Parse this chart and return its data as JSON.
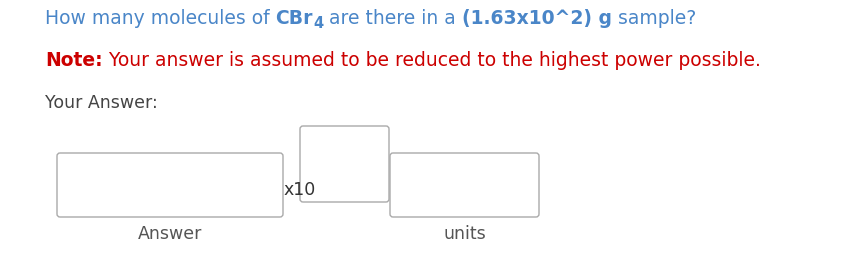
{
  "blue": "#4a86c8",
  "red": "#cc0000",
  "gray_text": "#555555",
  "dark_text": "#444444",
  "box_edge": "#aaaaaa",
  "background": "#ffffff",
  "q_prefix": "How many molecules of ",
  "q_chem": "CBr",
  "q_sub": "4",
  "q_middle": " are there in a ",
  "q_bold": "(1.63x10^2) g",
  "q_suffix": " sample?",
  "note_bold": "Note:",
  "note_rest": " Your answer is assumed to be reduced to the highest power possible.",
  "your_answer": "Your Answer:",
  "x10_label": "x10",
  "answer_label": "Answer",
  "units_label": "units",
  "fig_width": 8.41,
  "fig_height": 2.56,
  "dpi": 100
}
